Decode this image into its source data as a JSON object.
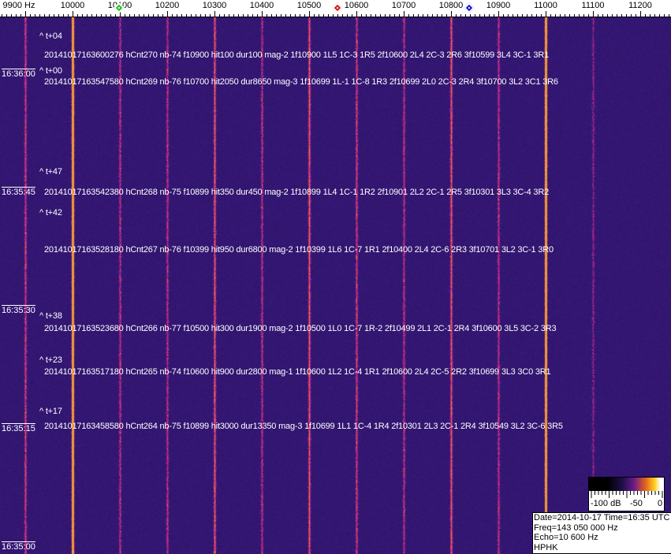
{
  "chart_data": {
    "type": "heatmap",
    "xlabel_unit": "Hz",
    "x_ticks": [
      "9900 Hz",
      "10000",
      "10100",
      "10200",
      "10300",
      "10400",
      "10500",
      "10600",
      "10700",
      "10800",
      "10900",
      "11000",
      "11100",
      "11200"
    ],
    "x_tick_values": [
      9900,
      10000,
      10100,
      10200,
      10300,
      10400,
      10500,
      10600,
      10700,
      10800,
      10900,
      11000,
      11100,
      11200
    ],
    "xlim": [
      9830,
      11265
    ],
    "y_ticks": [
      "16:36:00",
      "16:35:45",
      "16:35:30",
      "16:35:15",
      "16:35:00"
    ],
    "markers": [
      {
        "color": "#22c022",
        "freq": 10098
      },
      {
        "color": "#d02020",
        "freq": 10560
      },
      {
        "color": "#1a1ad0",
        "freq": 10838
      }
    ],
    "carriers": [
      {
        "freq": 10000,
        "strength": 1.0
      },
      {
        "freq": 11000,
        "strength": 1.0
      },
      {
        "freq": 9900,
        "strength": 0.35
      },
      {
        "freq": 10100,
        "strength": 0.3
      },
      {
        "freq": 10200,
        "strength": 0.3
      },
      {
        "freq": 10300,
        "strength": 0.45
      },
      {
        "freq": 10400,
        "strength": 0.3
      },
      {
        "freq": 10500,
        "strength": 0.45
      },
      {
        "freq": 10600,
        "strength": 0.35
      },
      {
        "freq": 10700,
        "strength": 0.3
      },
      {
        "freq": 10800,
        "strength": 0.45
      },
      {
        "freq": 10900,
        "strength": 0.3
      },
      {
        "freq": 11100,
        "strength": 0.2
      }
    ],
    "colorbar": {
      "labels": [
        "-100 dB",
        "-50",
        "0"
      ],
      "range_db": [
        -100,
        0
      ]
    },
    "annotations": [
      {
        "tag": "^ t+04",
        "text": "20141017163600276 hCnt270 nb-74 f10900 hit100 dur100 mag-2 1f10900 1L5 1C-3 1R5 2f10600 2L4 2C-3 2R6 3f10599 3L4 3C-1 3R1"
      },
      {
        "tag": "^ t+00",
        "text": "20141017163547580 hCnt269 nb-76 f10700 hit2050 dur8650 mag-3 1f10699 1L-1 1C-8 1R3 2f10699 2L0 2C-3 2R4 3f10700 3L2 3C1 3R6"
      },
      {
        "tag": "^ t+47",
        "text": "20141017163542380 hCnt268 nb-75 f10899 hit350 dur450 mag-2 1f10899 1L4 1C-1 1R2 2f10901 2L2 2C-1 2R5 3f10301 3L3 3C-4 3R2"
      },
      {
        "tag": "^ t+42",
        "text": "20141017163528180 hCnt267 nb-76 f10399 hit950 dur6800 mag-2 1f10399 1L6 1C-7 1R1 2f10400 2L4 2C-6 2R3 3f10701 3L2 3C-1 3R0"
      },
      {
        "tag": "^ t+38",
        "text": "20141017163523680 hCnt266 nb-77 f10500 hit300 dur1900 mag-2 1f10500 1L0 1C-7 1R-2 2f10499 2L1 2C-1 2R4 3f10600 3L5 3C-2 3R3"
      },
      {
        "tag": "^ t+23",
        "text": "20141017163517180 hCnt265 nb-74 f10600 hit900 dur2800 mag-1 1f10600 1L2 1C-4 1R1 2f10600 2L4 2C-5 2R2 3f10699 3L3 3C0 3R1"
      },
      {
        "tag": "^ t+17",
        "text": "20141017163458580 hCnt264 nb-75 f10899 hit3000 dur13350 mag-3 1f10699 1L1 1C-4 1R4 2f10301 2L3 2C-1 2R4 3f10549 3L2 3C-6 3R5"
      }
    ]
  },
  "info": {
    "date_time": "Date=2014-10-17 Time=16:35 UTC",
    "freq": "Freq=143 050 000 Hz",
    "echo": "Echo=10 600 Hz",
    "station": "HPHK"
  }
}
